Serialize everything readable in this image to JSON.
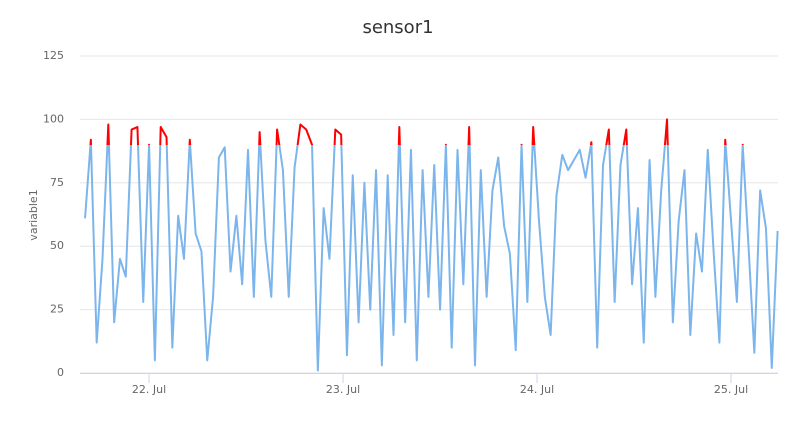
{
  "chart_data": {
    "type": "line",
    "title": "sensor1",
    "y_label": "variable1",
    "x": [
      21.67,
      21.7,
      21.73,
      21.76,
      21.79,
      21.82,
      21.85,
      21.88,
      21.91,
      21.94,
      21.97,
      22,
      22.03,
      22.06,
      22.09,
      22.12,
      22.15,
      22.18,
      22.21,
      22.24,
      22.27,
      22.3,
      22.33,
      22.36,
      22.39,
      22.42,
      22.45,
      22.48,
      22.51,
      22.54,
      22.57,
      22.6,
      22.63,
      22.66,
      22.69,
      22.72,
      22.75,
      22.78,
      22.81,
      22.84,
      22.87,
      22.9,
      22.93,
      22.96,
      22.99,
      23.02,
      23.05,
      23.08,
      23.11,
      23.14,
      23.17,
      23.2,
      23.23,
      23.26,
      23.29,
      23.32,
      23.35,
      23.38,
      23.41,
      23.44,
      23.47,
      23.5,
      23.53,
      23.56,
      23.59,
      23.62,
      23.65,
      23.68,
      23.71,
      23.74,
      23.77,
      23.8,
      23.83,
      23.86,
      23.89,
      23.92,
      23.95,
      23.98,
      24.01,
      24.04,
      24.07,
      24.1,
      24.13,
      24.16,
      24.19,
      24.22,
      24.25,
      24.28,
      24.31,
      24.34,
      24.37,
      24.4,
      24.43,
      24.46,
      24.49,
      24.52,
      24.55,
      24.58,
      24.61,
      24.64,
      24.67,
      24.7,
      24.73,
      24.76,
      24.79,
      24.82,
      24.85,
      24.88,
      24.91,
      24.94,
      24.97,
      25,
      25.03,
      25.06,
      25.09,
      25.12,
      25.15,
      25.18,
      25.21,
      25.24
    ],
    "series": [
      {
        "name": "variable1",
        "color": "#7cb5ec",
        "threshold": 90,
        "threshold_color": "#ff0000",
        "values": [
          61,
          92,
          12,
          45,
          98,
          20,
          45,
          38,
          96,
          97,
          28,
          90,
          5,
          97,
          93,
          10,
          62,
          45,
          92,
          55,
          48,
          5,
          30,
          85,
          89,
          40,
          62,
          35,
          88,
          30,
          95,
          52,
          30,
          96,
          80,
          30,
          81,
          98,
          96,
          90,
          1,
          65,
          45,
          96,
          94,
          7,
          78,
          20,
          75,
          25,
          80,
          3,
          78,
          15,
          97,
          20,
          88,
          5,
          80,
          30,
          82,
          25,
          90,
          10,
          88,
          35,
          97,
          3,
          80,
          30,
          72,
          85,
          58,
          47,
          9,
          90,
          28,
          97,
          60,
          30,
          15,
          70,
          86,
          80,
          84,
          88,
          77,
          91,
          10,
          82,
          96,
          28,
          82,
          96,
          35,
          65,
          12,
          84,
          30,
          72,
          100,
          20,
          60,
          80,
          15,
          55,
          40,
          88,
          48,
          12,
          92,
          60,
          28,
          90,
          50,
          8,
          72,
          57,
          2,
          56
        ]
      }
    ],
    "xlim": [
      21.644,
      25.242
    ],
    "xticks": [
      {
        "value": 22,
        "label": "22. Jul"
      },
      {
        "value": 23,
        "label": "23. Jul"
      },
      {
        "value": 24,
        "label": "24. Jul"
      },
      {
        "value": 25,
        "label": "25. Jul"
      }
    ],
    "ylim": [
      0,
      125
    ],
    "yticks": [
      0,
      25,
      50,
      75,
      100,
      125
    ],
    "grid": true
  }
}
